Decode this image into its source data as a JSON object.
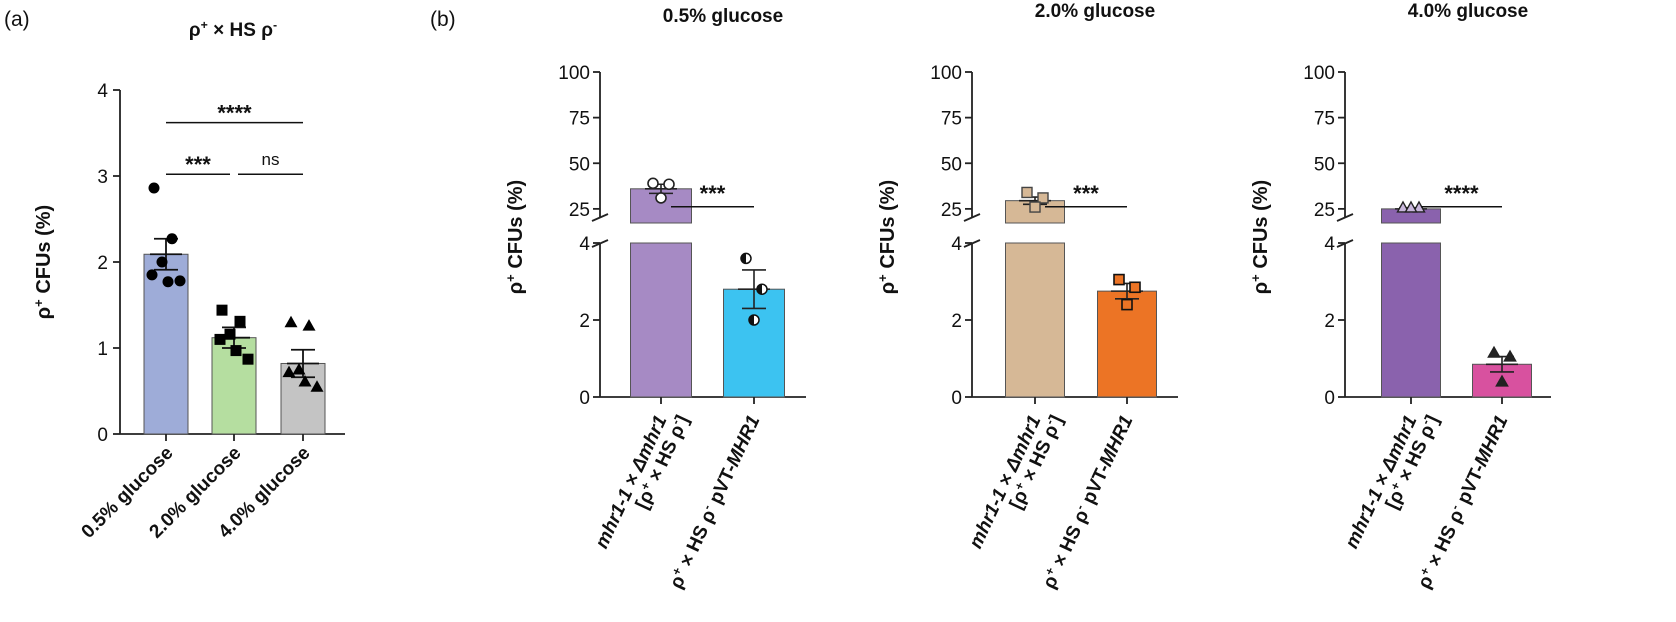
{
  "panel_labels": {
    "a": "(a)",
    "b": "(b)"
  },
  "chart_data": [
    {
      "id": "panel-a",
      "type": "bar",
      "title_parts": [
        "ρ",
        "+",
        " × HS ρ",
        "-"
      ],
      "ylabel_parts": [
        "ρ",
        "+",
        " CFUs (%)"
      ],
      "ylim": [
        0,
        4
      ],
      "yticks": [
        "0",
        "1",
        "2",
        "3",
        "4"
      ],
      "categories": [
        "0.5% glucose",
        "2.0% glucose",
        "4.0% glucose"
      ],
      "values": [
        2.09,
        1.12,
        0.82
      ],
      "sem": [
        0.18,
        0.12,
        0.16
      ],
      "colors": [
        "#9eacd8",
        "#b5dea0",
        "#c4c4c4"
      ],
      "points": [
        [
          2.86,
          2.27,
          2.0,
          1.85,
          1.77,
          1.78
        ],
        [
          1.44,
          1.31,
          1.16,
          1.1,
          0.97,
          0.87
        ],
        [
          1.3,
          1.26,
          0.75,
          0.72,
          0.61,
          0.55
        ]
      ],
      "markers": [
        "circle",
        "square",
        "triangle"
      ],
      "annotations": [
        {
          "text": "****",
          "from": 0,
          "to": 2,
          "y": 3.83
        },
        {
          "text": "***",
          "from": 0,
          "to": 1,
          "y": 3.23
        },
        {
          "text": "ns",
          "from": 1,
          "to": 2,
          "y": 3.23
        }
      ]
    },
    {
      "id": "panel-b1",
      "type": "bar",
      "title": "0.5% glucose",
      "ylabel_parts": [
        "ρ",
        "+",
        " CFUs (%)"
      ],
      "yticks_upper": [
        "25",
        "50",
        "75",
        "100"
      ],
      "yticks_lower": [
        "0",
        "2",
        "4"
      ],
      "upper_ylim": [
        20,
        100
      ],
      "lower_ylim": [
        0,
        4
      ],
      "categories": [
        {
          "line1": [
            "mhr1-1 × Δmhr1"
          ],
          "line2": [
            "[ρ",
            "+",
            " × HS ρ",
            "-",
            "]"
          ]
        },
        {
          "line1": [
            "ρ",
            "+",
            " × HS ρ",
            "-",
            " pVT-",
            "MHR1"
          ]
        }
      ],
      "values": [
        36.0,
        2.8
      ],
      "sem": [
        2.5,
        0.5
      ],
      "colors": [
        "#a68ac4",
        "#3cc3f1"
      ],
      "points": [
        [
          39.0,
          38.5,
          31.0
        ],
        [
          3.6,
          2.8,
          2.0
        ]
      ],
      "markers": [
        "open-circle",
        "half-circle"
      ],
      "annotation": {
        "text": "***",
        "y": 30
      }
    },
    {
      "id": "panel-b2",
      "type": "bar",
      "title": "2.0% glucose",
      "ylabel_parts": [
        "ρ",
        "+",
        " CFUs (%)"
      ],
      "yticks_upper": [
        "25",
        "50",
        "75",
        "100"
      ],
      "yticks_lower": [
        "0",
        "2",
        "4"
      ],
      "upper_ylim": [
        20,
        100
      ],
      "lower_ylim": [
        0,
        4
      ],
      "categories": [
        {
          "line1": [
            "mhr1-1 × Δmhr1"
          ],
          "line2": [
            "[ρ",
            "+",
            " × HS ρ",
            "-",
            "]"
          ]
        },
        {
          "line1": [
            "ρ",
            "+",
            " × HS ρ",
            "-",
            " pVT-",
            "MHR1"
          ]
        }
      ],
      "values": [
        29.5,
        2.75
      ],
      "sem": [
        2.0,
        0.2
      ],
      "colors": [
        "#d6b896",
        "#ec7425"
      ],
      "points": [
        [
          34.0,
          31.0,
          26.0
        ],
        [
          3.05,
          2.85,
          2.4
        ]
      ],
      "markers": [
        "tan-square",
        "orange-square"
      ],
      "annotation": {
        "text": "***",
        "y": 30
      }
    },
    {
      "id": "panel-b3",
      "type": "bar",
      "title": "4.0% glucose",
      "ylabel_parts": [
        "ρ",
        "+",
        " CFUs (%)"
      ],
      "yticks_upper": [
        "25",
        "50",
        "75",
        "100"
      ],
      "yticks_lower": [
        "0",
        "2",
        "4"
      ],
      "upper_ylim": [
        20,
        100
      ],
      "lower_ylim": [
        0,
        4
      ],
      "categories": [
        {
          "line1": [
            "mhr1-1 × Δmhr1"
          ],
          "line2": [
            "[ρ",
            "+",
            " × HS ρ",
            "-",
            "]"
          ]
        },
        {
          "line1": [
            "ρ",
            "+",
            " × HS ρ",
            "-",
            " pVT-",
            "MHR1"
          ]
        }
      ],
      "values": [
        25.0,
        0.85
      ],
      "sem": [
        0.6,
        0.2
      ],
      "colors": [
        "#8a62ad",
        "#d8519f"
      ],
      "points": [
        [
          25.8,
          25.8,
          25.8
        ],
        [
          1.15,
          1.05,
          0.4
        ]
      ],
      "markers": [
        "lilac-triangle",
        "pink-triangle"
      ],
      "annotation": {
        "text": "****",
        "y": 30
      }
    }
  ]
}
